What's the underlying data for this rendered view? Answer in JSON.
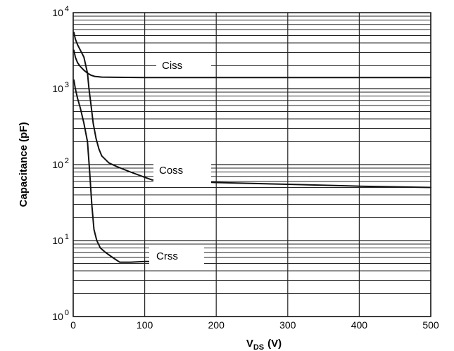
{
  "chart_data": {
    "type": "line",
    "title": "",
    "xlabel": {
      "main": "V",
      "sub": "DS",
      "tail": "(V)"
    },
    "ylabel": "Capacitance (pF)",
    "xlim": [
      0,
      500
    ],
    "ylim": [
      1,
      10000
    ],
    "yscale": "log",
    "grid": true,
    "x_ticks": [
      "0",
      "100",
      "200",
      "300",
      "400",
      "500"
    ],
    "y_ticks": [
      {
        "base": "10",
        "exp": "0"
      },
      {
        "base": "10",
        "exp": "1"
      },
      {
        "base": "10",
        "exp": "2"
      },
      {
        "base": "10",
        "exp": "3"
      },
      {
        "base": "10",
        "exp": "4"
      }
    ],
    "series": [
      {
        "name": "Ciss",
        "x": [
          1,
          3,
          6,
          10,
          15,
          20,
          25,
          30,
          40,
          60,
          100,
          150,
          200,
          300,
          400,
          500
        ],
        "y": [
          3200,
          2600,
          2200,
          1950,
          1750,
          1600,
          1500,
          1450,
          1420,
          1410,
          1400,
          1400,
          1400,
          1400,
          1400,
          1400
        ]
      },
      {
        "name": "Coss",
        "x": [
          1,
          3,
          6,
          10,
          15,
          20,
          22,
          25,
          28,
          32,
          36,
          40,
          50,
          60,
          80,
          100,
          110,
          200,
          300,
          400,
          500
        ],
        "y": [
          5500,
          4500,
          3800,
          3200,
          2600,
          1600,
          1000,
          600,
          350,
          220,
          160,
          130,
          105,
          95,
          80,
          68,
          63,
          58,
          55,
          52,
          50
        ]
      },
      {
        "name": "Crss",
        "x": [
          1,
          3,
          6,
          10,
          15,
          20,
          23,
          26,
          29,
          33,
          38,
          45,
          55,
          65,
          80,
          100,
          110
        ],
        "y": [
          1300,
          1000,
          750,
          550,
          350,
          200,
          80,
          30,
          14,
          10,
          8,
          7,
          6,
          5.2,
          5.2,
          5.3,
          5.3
        ]
      }
    ],
    "annotations": [
      "Ciss",
      "Coss",
      "Crss"
    ]
  }
}
